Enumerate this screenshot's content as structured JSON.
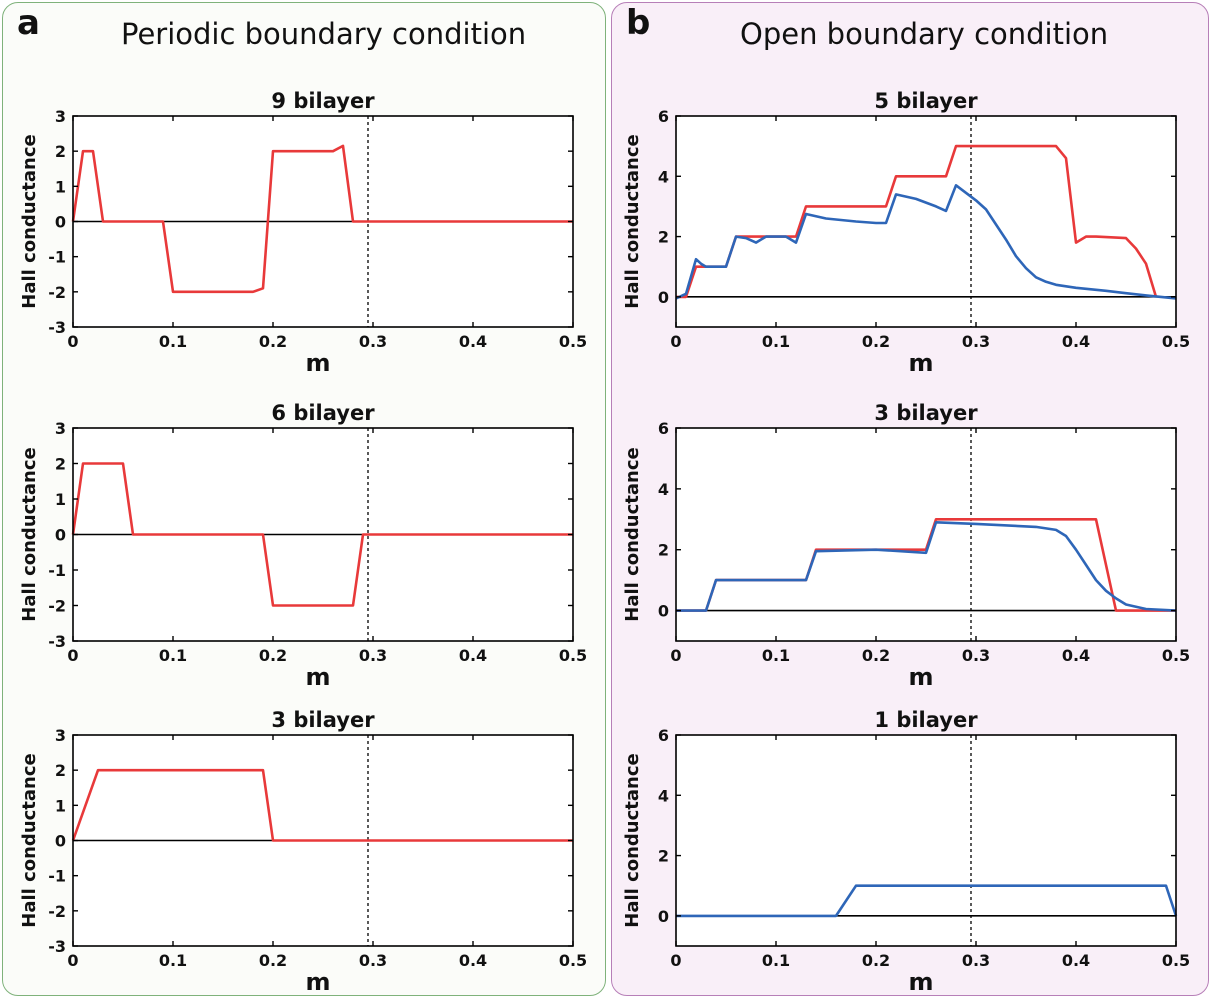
{
  "colors": {
    "panel_a_bg": "#fbfcf9",
    "panel_a_border": "#7fb27b",
    "panel_b_bg": "#f9eff8",
    "panel_b_border": "#b77fb8",
    "red": "#e8393a",
    "blue": "#2e66b8"
  },
  "panels": {
    "a": {
      "letter": "a",
      "title": "Periodic boundary condition"
    },
    "b": {
      "letter": "b",
      "title": "Open boundary condition"
    }
  },
  "chart_data": [
    {
      "type": "line",
      "panel": "a",
      "title": "9 bilayer",
      "xlabel": "m",
      "ylabel": "Hall conductance",
      "xlim": [
        0,
        0.5
      ],
      "ylim": [
        -3,
        3
      ],
      "xticks": [
        0,
        0.1,
        0.2,
        0.3,
        0.4,
        0.5
      ],
      "yticks": [
        -3,
        -2,
        -1,
        0,
        1,
        2,
        3
      ],
      "vline": 0.295,
      "series": [
        {
          "color": "red",
          "x": [
            0,
            0.01,
            0.02,
            0.03,
            0.09,
            0.1,
            0.18,
            0.19,
            0.2,
            0.26,
            0.27,
            0.28,
            0.5
          ],
          "y": [
            0,
            2,
            2,
            0,
            0,
            -2,
            -2,
            -1.9,
            2,
            2,
            2.15,
            0,
            0
          ]
        }
      ]
    },
    {
      "type": "line",
      "panel": "a",
      "title": "6 bilayer",
      "xlabel": "m",
      "ylabel": "Hall conductance",
      "xlim": [
        0,
        0.5
      ],
      "ylim": [
        -3,
        3
      ],
      "xticks": [
        0,
        0.1,
        0.2,
        0.3,
        0.4,
        0.5
      ],
      "yticks": [
        -3,
        -2,
        -1,
        0,
        1,
        2,
        3
      ],
      "vline": 0.295,
      "series": [
        {
          "color": "red",
          "x": [
            0,
            0.01,
            0.05,
            0.06,
            0.19,
            0.2,
            0.28,
            0.29,
            0.5
          ],
          "y": [
            0,
            2,
            2,
            0,
            0,
            -2,
            -2,
            0,
            0
          ]
        }
      ]
    },
    {
      "type": "line",
      "panel": "a",
      "title": "3 bilayer",
      "xlabel": "m",
      "ylabel": "Hall conductance",
      "xlim": [
        0,
        0.5
      ],
      "ylim": [
        -3,
        3
      ],
      "xticks": [
        0,
        0.1,
        0.2,
        0.3,
        0.4,
        0.5
      ],
      "yticks": [
        -3,
        -2,
        -1,
        0,
        1,
        2,
        3
      ],
      "vline": 0.295,
      "series": [
        {
          "color": "red",
          "x": [
            0,
            0.025,
            0.19,
            0.2,
            0.5
          ],
          "y": [
            0,
            2,
            2,
            0,
            0
          ]
        }
      ]
    },
    {
      "type": "line",
      "panel": "b",
      "title": "5 bilayer",
      "xlabel": "m",
      "ylabel": "Hall conductance",
      "xlim": [
        0,
        0.5
      ],
      "ylim": [
        -1,
        6
      ],
      "xticks": [
        0,
        0.1,
        0.2,
        0.3,
        0.4,
        0.5
      ],
      "yticks": [
        0,
        2,
        4,
        6
      ],
      "vline": 0.295,
      "series": [
        {
          "color": "red",
          "x": [
            0,
            0.01,
            0.02,
            0.03,
            0.05,
            0.06,
            0.07,
            0.08,
            0.09,
            0.11,
            0.12,
            0.13,
            0.21,
            0.22,
            0.27,
            0.28,
            0.37,
            0.38,
            0.39,
            0.4,
            0.41,
            0.42,
            0.45,
            0.46,
            0.47,
            0.48
          ],
          "y": [
            0,
            0,
            1,
            1,
            1,
            2,
            2,
            2,
            2,
            2,
            2,
            3,
            3,
            4,
            4,
            5,
            5,
            5,
            4.6,
            1.8,
            2,
            2,
            1.95,
            1.6,
            1.1,
            0
          ]
        },
        {
          "color": "blue",
          "x": [
            0,
            0.01,
            0.02,
            0.025,
            0.03,
            0.05,
            0.06,
            0.07,
            0.08,
            0.09,
            0.11,
            0.12,
            0.13,
            0.15,
            0.18,
            0.2,
            0.21,
            0.22,
            0.24,
            0.26,
            0.27,
            0.28,
            0.3,
            0.31,
            0.32,
            0.33,
            0.34,
            0.35,
            0.36,
            0.37,
            0.38,
            0.4,
            0.43,
            0.45,
            0.47,
            0.5
          ],
          "y": [
            -0.05,
            0.1,
            1.25,
            1.1,
            1,
            1,
            2,
            1.95,
            1.8,
            2,
            2,
            1.8,
            2.75,
            2.6,
            2.5,
            2.45,
            2.45,
            3.4,
            3.25,
            3,
            2.85,
            3.7,
            3.2,
            2.9,
            2.4,
            1.9,
            1.35,
            0.95,
            0.65,
            0.5,
            0.4,
            0.3,
            0.2,
            0.12,
            0.05,
            -0.05
          ]
        }
      ]
    },
    {
      "type": "line",
      "panel": "b",
      "title": "3 bilayer",
      "xlabel": "m",
      "ylabel": "Hall conductance",
      "xlim": [
        0,
        0.5
      ],
      "ylim": [
        -1,
        6
      ],
      "xticks": [
        0,
        0.1,
        0.2,
        0.3,
        0.4,
        0.5
      ],
      "yticks": [
        0,
        2,
        4,
        6
      ],
      "vline": 0.295,
      "series": [
        {
          "color": "red",
          "x": [
            0,
            0.03,
            0.04,
            0.13,
            0.14,
            0.25,
            0.26,
            0.42,
            0.43,
            0.44,
            0.5
          ],
          "y": [
            0,
            0,
            1,
            1,
            2,
            2,
            3,
            3,
            1.5,
            0,
            0
          ]
        },
        {
          "color": "blue",
          "x": [
            0,
            0.03,
            0.04,
            0.13,
            0.14,
            0.2,
            0.25,
            0.26,
            0.3,
            0.36,
            0.38,
            0.39,
            0.4,
            0.41,
            0.42,
            0.43,
            0.44,
            0.45,
            0.47,
            0.5
          ],
          "y": [
            0,
            0,
            1,
            1,
            1.95,
            2,
            1.9,
            2.9,
            2.85,
            2.75,
            2.65,
            2.45,
            2,
            1.5,
            1,
            0.65,
            0.4,
            0.2,
            0.05,
            0
          ]
        }
      ]
    },
    {
      "type": "line",
      "panel": "b",
      "title": "1 bilayer",
      "xlabel": "m",
      "ylabel": "Hall conductance",
      "xlim": [
        0,
        0.5
      ],
      "ylim": [
        -1,
        6
      ],
      "xticks": [
        0,
        0.1,
        0.2,
        0.3,
        0.4,
        0.5
      ],
      "yticks": [
        0,
        2,
        4,
        6
      ],
      "vline": 0.295,
      "series": [
        {
          "color": "blue",
          "x": [
            0,
            0.16,
            0.18,
            0.49,
            0.5
          ],
          "y": [
            0,
            0,
            1,
            1,
            0
          ]
        }
      ]
    }
  ]
}
